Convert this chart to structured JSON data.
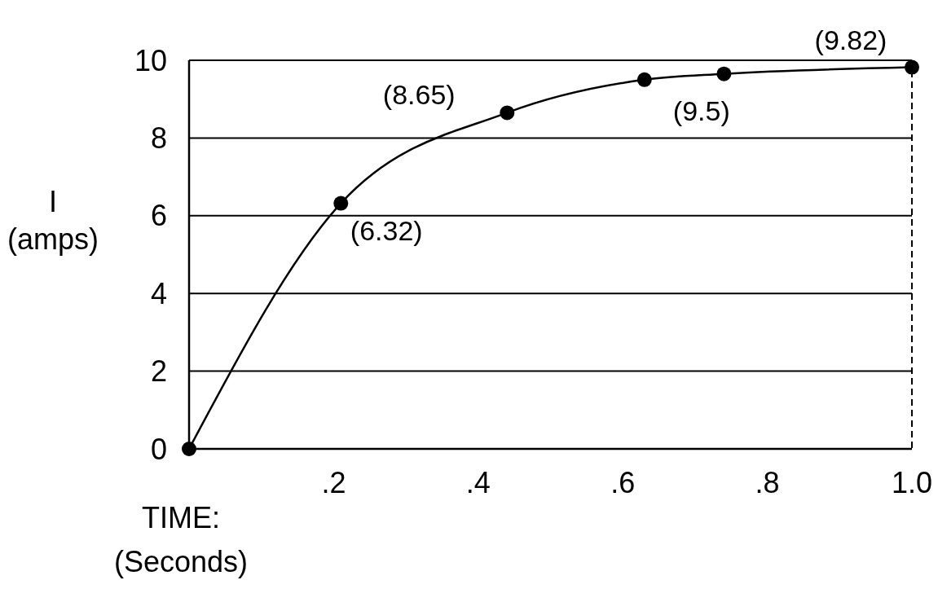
{
  "chart_data": {
    "type": "line",
    "xlabel": "TIME:\n(Seconds)",
    "ylabel": "I\n(amps)",
    "x": [
      0,
      0.21,
      0.44,
      0.63,
      0.74,
      1.0
    ],
    "series": [
      {
        "color": "#000000",
        "values": [
          0,
          6.32,
          8.65,
          9.5,
          9.65,
          9.82
        ],
        "value_labels": [
          null,
          "(6.32)",
          "(8.65)",
          "(9.5)",
          null,
          "(9.82)"
        ]
      }
    ],
    "xlim": [
      0,
      1.0
    ],
    "ylim": [
      0,
      10
    ],
    "xticks": [
      {
        "value": 0.2,
        "label": ".2"
      },
      {
        "value": 0.4,
        "label": ".4"
      },
      {
        "value": 0.6,
        "label": ".6"
      },
      {
        "value": 0.8,
        "label": ".8"
      },
      {
        "value": 1.0,
        "label": "1.0"
      }
    ],
    "yticks": [
      0,
      2,
      4,
      6,
      8,
      10
    ],
    "ref_lines": [
      {
        "axis": "x",
        "value": 1.0,
        "line_style": "dashed"
      }
    ],
    "grid": "y",
    "marker": "circle",
    "line_style": "solid"
  }
}
